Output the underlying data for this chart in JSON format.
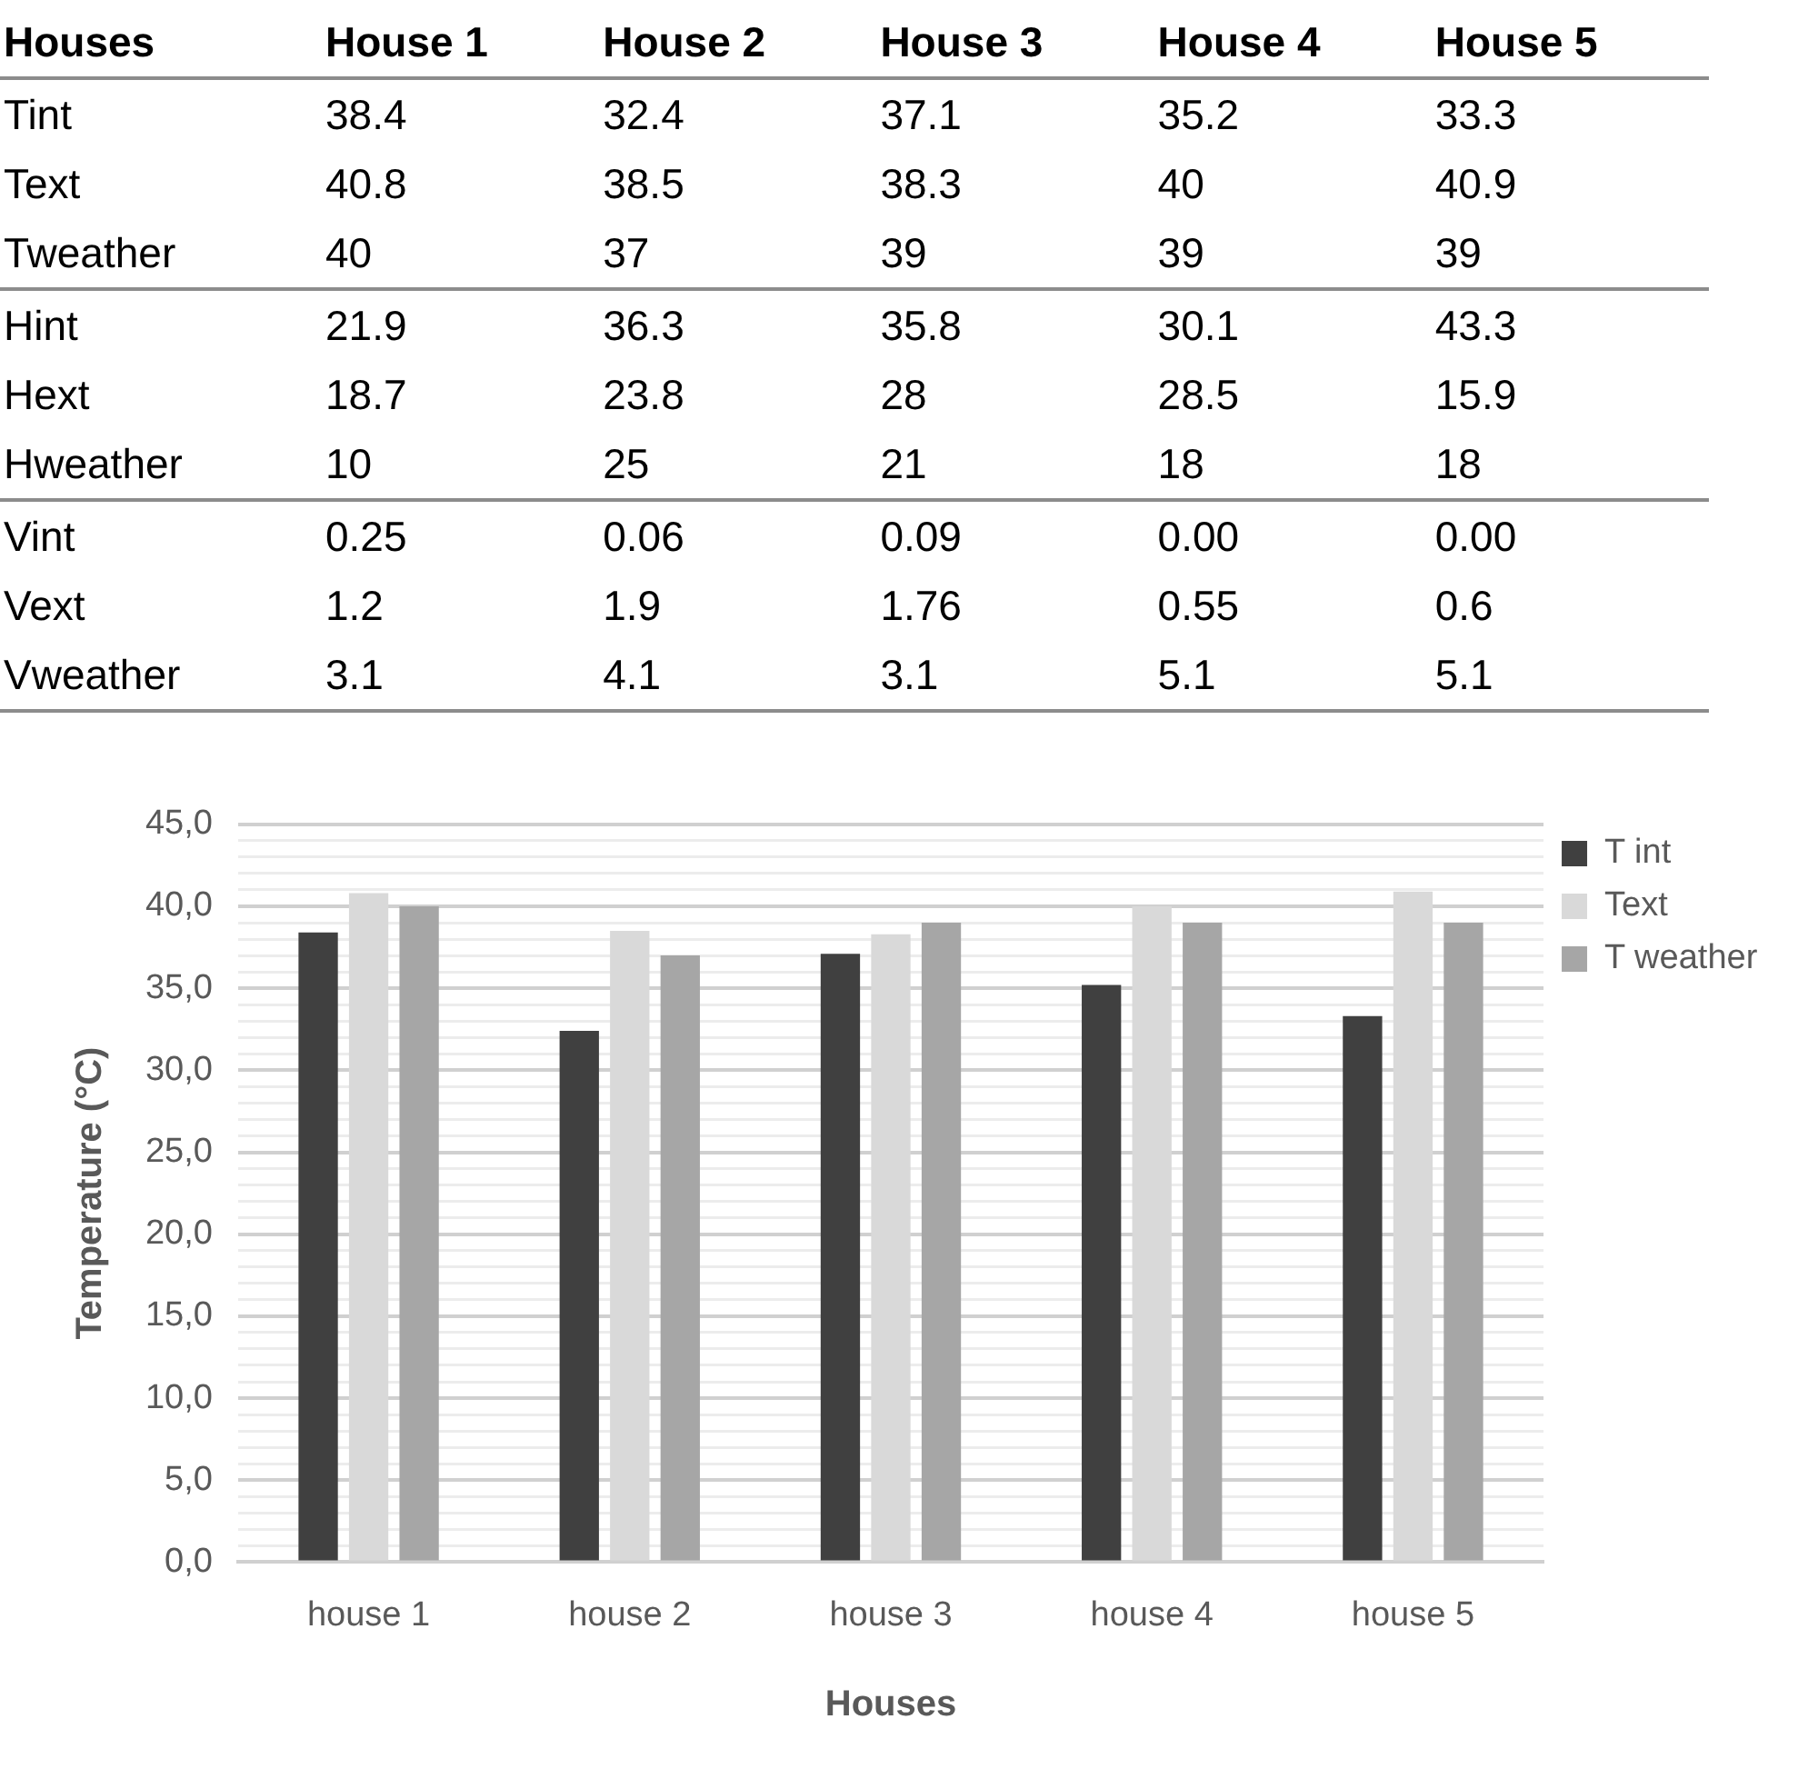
{
  "chart_data": [
    {
      "type": "heatmap",
      "xlabel": "Houses",
      "categories": [
        "House 1",
        "House 2",
        "House 3",
        "House 4",
        "House 5"
      ],
      "y_categories": [
        "Tint",
        "Text",
        "Tweather",
        "Hint",
        "Hext",
        "Hweather",
        "Vint",
        "Vext",
        "Vweather"
      ],
      "cells": [
        [
          38.4,
          32.4,
          37.1,
          35.2,
          33.3
        ],
        [
          40.8,
          38.5,
          38.3,
          40,
          40.9
        ],
        [
          40,
          37,
          39,
          39,
          39
        ],
        [
          21.9,
          36.3,
          35.8,
          30.1,
          43.3
        ],
        [
          18.7,
          23.8,
          28,
          28.5,
          15.9
        ],
        [
          10,
          25,
          21,
          18,
          18
        ],
        [
          0.25,
          0.06,
          0.09,
          0,
          0
        ],
        [
          1.2,
          1.9,
          1.76,
          0.55,
          0.6
        ],
        [
          3.1,
          4.1,
          3.1,
          5.1,
          5.1
        ]
      ],
      "cell_labels": [
        [
          "38.4",
          "32.4",
          "37.1",
          "35.2",
          "33.3"
        ],
        [
          "40.8",
          "38.5",
          "38.3",
          "40",
          "40.9"
        ],
        [
          "40",
          "37",
          "39",
          "39",
          "39"
        ],
        [
          "21.9",
          "36.3",
          "35.8",
          "30.1",
          "43.3"
        ],
        [
          "18.7",
          "23.8",
          "28",
          "28.5",
          "15.9"
        ],
        [
          "10",
          "25",
          "21",
          "18",
          "18"
        ],
        [
          "0.25",
          "0.06",
          "0.09",
          "0.00",
          "0.00"
        ],
        [
          "1.2",
          "1.9",
          "1.76",
          "0.55",
          "0.6"
        ],
        [
          "3.1",
          "4.1",
          "3.1",
          "5.1",
          "5.1"
        ]
      ]
    },
    {
      "type": "bar",
      "xlabel": "Houses",
      "ylabel": "Temperature (°C)",
      "categories": [
        "house 1",
        "house 2",
        "house 3",
        "house 4",
        "house 5"
      ],
      "series": [
        {
          "name": "T int",
          "color": "#404040",
          "values": [
            38.4,
            32.4,
            37.1,
            35.2,
            33.3
          ]
        },
        {
          "name": "Text",
          "color": "#d9d9d9",
          "values": [
            40.8,
            38.5,
            38.3,
            40,
            40.9
          ]
        },
        {
          "name": "T weather",
          "color": "#a6a6a6",
          "values": [
            40,
            37,
            39,
            39,
            39
          ]
        }
      ],
      "ylim": [
        0,
        45
      ],
      "yticks": [
        {
          "value": 0,
          "label": "0,0"
        },
        {
          "value": 1,
          "label": null
        },
        {
          "value": 2,
          "label": null
        },
        {
          "value": 3,
          "label": null
        },
        {
          "value": 4,
          "label": null
        },
        {
          "value": 5,
          "label": "5,0"
        },
        {
          "value": 6,
          "label": null
        },
        {
          "value": 7,
          "label": null
        },
        {
          "value": 8,
          "label": null
        },
        {
          "value": 9,
          "label": null
        },
        {
          "value": 10,
          "label": "10,0"
        },
        {
          "value": 11,
          "label": null
        },
        {
          "value": 12,
          "label": null
        },
        {
          "value": 13,
          "label": null
        },
        {
          "value": 14,
          "label": null
        },
        {
          "value": 15,
          "label": "15,0"
        },
        {
          "value": 16,
          "label": null
        },
        {
          "value": 17,
          "label": null
        },
        {
          "value": 18,
          "label": null
        },
        {
          "value": 19,
          "label": null
        },
        {
          "value": 20,
          "label": "20,0"
        },
        {
          "value": 21,
          "label": null
        },
        {
          "value": 22,
          "label": null
        },
        {
          "value": 23,
          "label": null
        },
        {
          "value": 24,
          "label": null
        },
        {
          "value": 25,
          "label": "25,0"
        },
        {
          "value": 26,
          "label": null
        },
        {
          "value": 27,
          "label": null
        },
        {
          "value": 28,
          "label": null
        },
        {
          "value": 29,
          "label": null
        },
        {
          "value": 30,
          "label": "30,0"
        },
        {
          "value": 31,
          "label": null
        },
        {
          "value": 32,
          "label": null
        },
        {
          "value": 33,
          "label": null
        },
        {
          "value": 34,
          "label": null
        },
        {
          "value": 35,
          "label": "35,0"
        },
        {
          "value": 36,
          "label": null
        },
        {
          "value": 37,
          "label": null
        },
        {
          "value": 38,
          "label": null
        },
        {
          "value": 39,
          "label": null
        },
        {
          "value": 40,
          "label": "40,0"
        },
        {
          "value": 41,
          "label": null
        },
        {
          "value": 42,
          "label": null
        },
        {
          "value": 43,
          "label": null
        },
        {
          "value": 44,
          "label": null
        },
        {
          "value": 45,
          "label": "45,0"
        }
      ],
      "grid": "y",
      "legend": "top right"
    }
  ]
}
